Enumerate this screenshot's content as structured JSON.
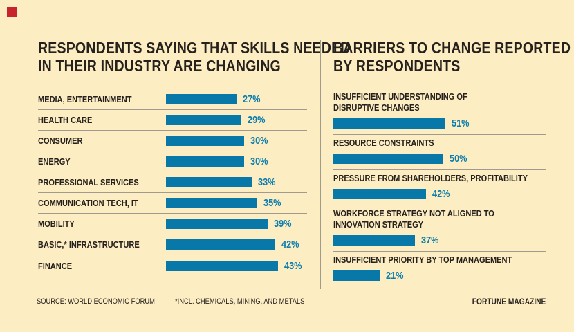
{
  "page": {
    "background_color": "#FCEDC3",
    "text_color": "#26211C",
    "accent_color": "#0878A8",
    "value_text_color": "#0C7DAD",
    "separator_color": "#A09A8F",
    "red_square_color": "#C8242B"
  },
  "footer": {
    "source": "SOURCE: WORLD ECONOMIC FORUM",
    "note": "*INCL. CHEMICALS, MINING, AND METALS",
    "credit": "FORTUNE MAGAZINE"
  },
  "chart_data": [
    {
      "type": "bar",
      "orientation": "horizontal",
      "title": "RESPONDENTS SAYING THAT SKILLS NEEDED IN THEIR INDUSTRY ARE CHANGING",
      "title_lines": [
        "RESPONDENTS SAYING THAT SKILLS NEEDED",
        "IN THEIR INDUSTRY ARE CHANGING"
      ],
      "categories": [
        "MEDIA, ENTERTAINMENT",
        "HEALTH CARE",
        "CONSUMER",
        "ENERGY",
        "PROFESSIONAL SERVICES",
        "COMMUNICATION TECH, IT",
        "MOBILITY",
        "BASIC,* INFRASTRUCTURE",
        "FINANCE"
      ],
      "values": [
        27,
        29,
        30,
        30,
        33,
        35,
        39,
        42,
        43
      ],
      "value_labels": [
        "27%",
        "29%",
        "30%",
        "30%",
        "33%",
        "35%",
        "39%",
        "42%",
        "43%"
      ],
      "unit": "%",
      "bar_color": "#0878A8",
      "axes_shown": false,
      "grid": false,
      "value_labels_shown": true,
      "legend": null
    },
    {
      "type": "bar",
      "orientation": "horizontal",
      "title": "BARRIERS TO CHANGE REPORTED BY RESPONDENTS",
      "title_lines": [
        "BARRIERS TO CHANGE REPORTED",
        "BY RESPONDENTS"
      ],
      "categories": [
        "INSUFFICIENT UNDERSTANDING OF DISRUPTIVE CHANGES",
        "RESOURCE CONSTRAINTS",
        "PRESSURE FROM SHAREHOLDERS, PROFITABILITY",
        "WORKFORCE STRATEGY NOT ALIGNED TO INNOVATION STRATEGY",
        "INSUFFICIENT PRIORITY BY TOP MANAGEMENT"
      ],
      "category_lines": [
        [
          "INSUFFICIENT UNDERSTANDING OF",
          "DISRUPTIVE CHANGES"
        ],
        [
          "RESOURCE CONSTRAINTS"
        ],
        [
          "PRESSURE FROM SHAREHOLDERS, PROFITABILITY"
        ],
        [
          "WORKFORCE STRATEGY NOT ALIGNED TO",
          "INNOVATION STRATEGY"
        ],
        [
          "INSUFFICIENT PRIORITY BY TOP MANAGEMENT"
        ]
      ],
      "values": [
        51,
        50,
        42,
        37,
        21
      ],
      "value_labels": [
        "51%",
        "50%",
        "42%",
        "37%",
        "21%"
      ],
      "unit": "%",
      "bar_color": "#0878A8",
      "axes_shown": false,
      "grid": false,
      "value_labels_shown": true,
      "legend": null
    }
  ]
}
